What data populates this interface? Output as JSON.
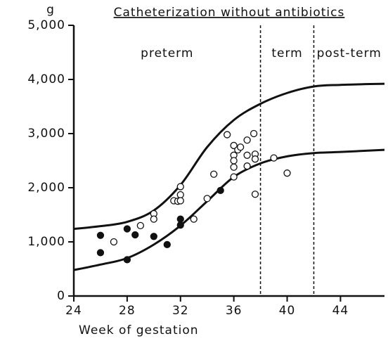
{
  "chart_data": {
    "type": "scatter",
    "title": "Catheterization without antibiotics",
    "y_unit": "g",
    "xlabel": "Week of gestation",
    "xlim": [
      24,
      47.3
    ],
    "ylim": [
      0,
      5000
    ],
    "xticks": [
      24,
      28,
      32,
      36,
      40,
      44
    ],
    "yticks": [
      0,
      {
        "value": 1000,
        "label": "1,000"
      },
      {
        "value": 2000,
        "label": "2,000"
      },
      {
        "value": 3000,
        "label": "3,000"
      },
      {
        "value": 4000,
        "label": "4,000"
      },
      {
        "value": 5000,
        "label": "5,000"
      }
    ],
    "boundaries": [
      38,
      42
    ],
    "regions": [
      "preterm",
      "term",
      "post-term"
    ],
    "curves": [
      {
        "x": [
          24,
          26,
          28,
          30,
          32,
          34,
          36,
          38,
          40,
          42,
          44,
          47.3
        ],
        "y": [
          1240,
          1290,
          1370,
          1580,
          2050,
          2750,
          3250,
          3550,
          3750,
          3870,
          3900,
          3920
        ]
      },
      {
        "x": [
          24,
          26,
          28,
          30,
          32,
          34,
          36,
          38,
          40,
          42,
          44,
          47.3
        ],
        "y": [
          480,
          580,
          700,
          950,
          1300,
          1750,
          2200,
          2450,
          2580,
          2640,
          2660,
          2700
        ]
      }
    ],
    "series": [
      {
        "marker": "filled",
        "color": "#111111",
        "x": [
          26,
          26,
          28,
          28,
          28.6,
          30,
          31,
          32,
          32,
          35
        ],
        "values": [
          1120,
          800,
          1240,
          670,
          1130,
          1100,
          950,
          1420,
          1310,
          1950
        ]
      },
      {
        "marker": "open",
        "color": "#111111",
        "x": [
          27,
          29,
          30,
          30,
          31.5,
          31.8,
          32,
          32,
          32,
          33,
          34,
          34.5,
          35.5,
          36,
          36,
          36,
          36,
          36,
          36.3,
          36.5,
          37,
          37,
          37,
          37.5,
          37.6,
          37.6,
          37.6,
          39,
          40
        ],
        "values": [
          1000,
          1300,
          1520,
          1420,
          1760,
          1750,
          2020,
          1870,
          1760,
          1420,
          1800,
          2250,
          2980,
          2780,
          2600,
          2500,
          2380,
          2200,
          2700,
          2750,
          2880,
          2600,
          2400,
          3000,
          2620,
          2530,
          1880,
          2550,
          2270
        ]
      }
    ]
  }
}
